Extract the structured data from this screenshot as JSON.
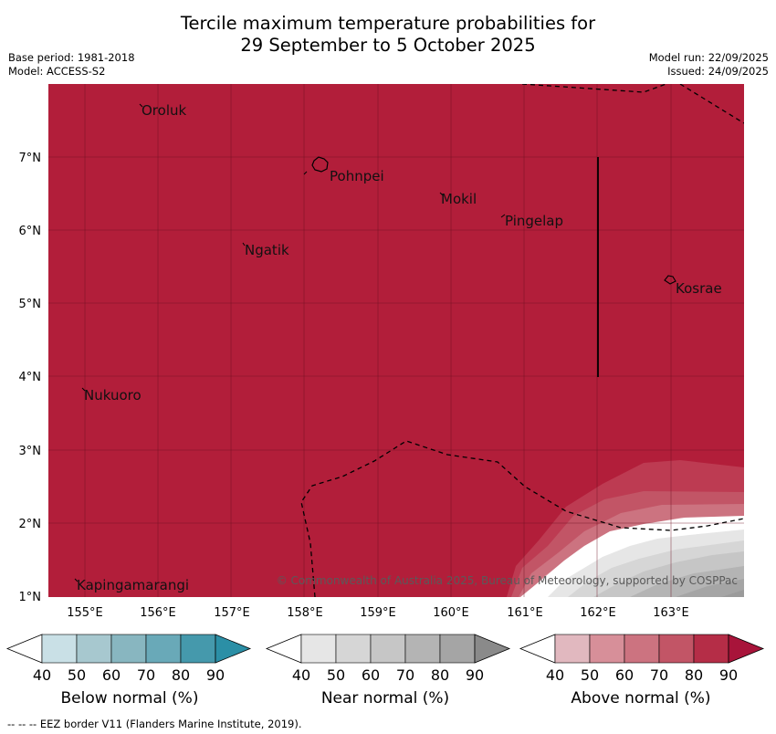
{
  "header": {
    "title_line1": "Tercile maximum temperature probabilities for",
    "title_line2": "29 September to 5 October 2025",
    "base_period": "Base period: 1981-2018",
    "model": "Model: ACCESS-S2",
    "model_run": "Model run: 22/09/2025",
    "issued": "Issued: 24/09/2025"
  },
  "map": {
    "lon_ticks": [
      "155°E",
      "156°E",
      "157°E",
      "158°E",
      "159°E",
      "160°E",
      "161°E",
      "162°E",
      "163°E"
    ],
    "lat_ticks": [
      "7°N",
      "6°N",
      "5°N",
      "4°N",
      "3°N",
      "2°N",
      "1°N"
    ],
    "places": [
      "Oroluk",
      "Pohnpei",
      "Mokil",
      "Pingelap",
      "Ngatik",
      "Kosrae",
      "Nukuoro",
      "Kapingamarangi"
    ],
    "copyright": "© Commonwealth of Australia 2025, Bureau of Meteorology, supported by COSPPac",
    "colors": {
      "above_90": "#b21e3a",
      "near_90": "#9b9b9b"
    }
  },
  "legend": {
    "tick_labels": [
      "40",
      "50",
      "60",
      "70",
      "80",
      "90"
    ],
    "below": {
      "caption": "Below normal (%)",
      "colors": [
        "#c9e0e6",
        "#a7c8cf",
        "#88b6c0",
        "#69a9b8",
        "#4599ac",
        "#2b8fa6"
      ]
    },
    "near": {
      "caption": "Near normal (%)",
      "colors": [
        "#e6e6e6",
        "#d6d6d6",
        "#c6c6c6",
        "#b4b4b4",
        "#a5a5a5",
        "#8a8a8a"
      ]
    },
    "above": {
      "caption": "Above normal (%)",
      "colors": [
        "#e1b8bf",
        "#d78f99",
        "#cc7380",
        "#c25566",
        "#b52d47",
        "#a8143a"
      ]
    }
  },
  "footer": {
    "eez_note": "--  --  -- EEZ border V11 (Flanders Marine Institute, 2019)."
  }
}
